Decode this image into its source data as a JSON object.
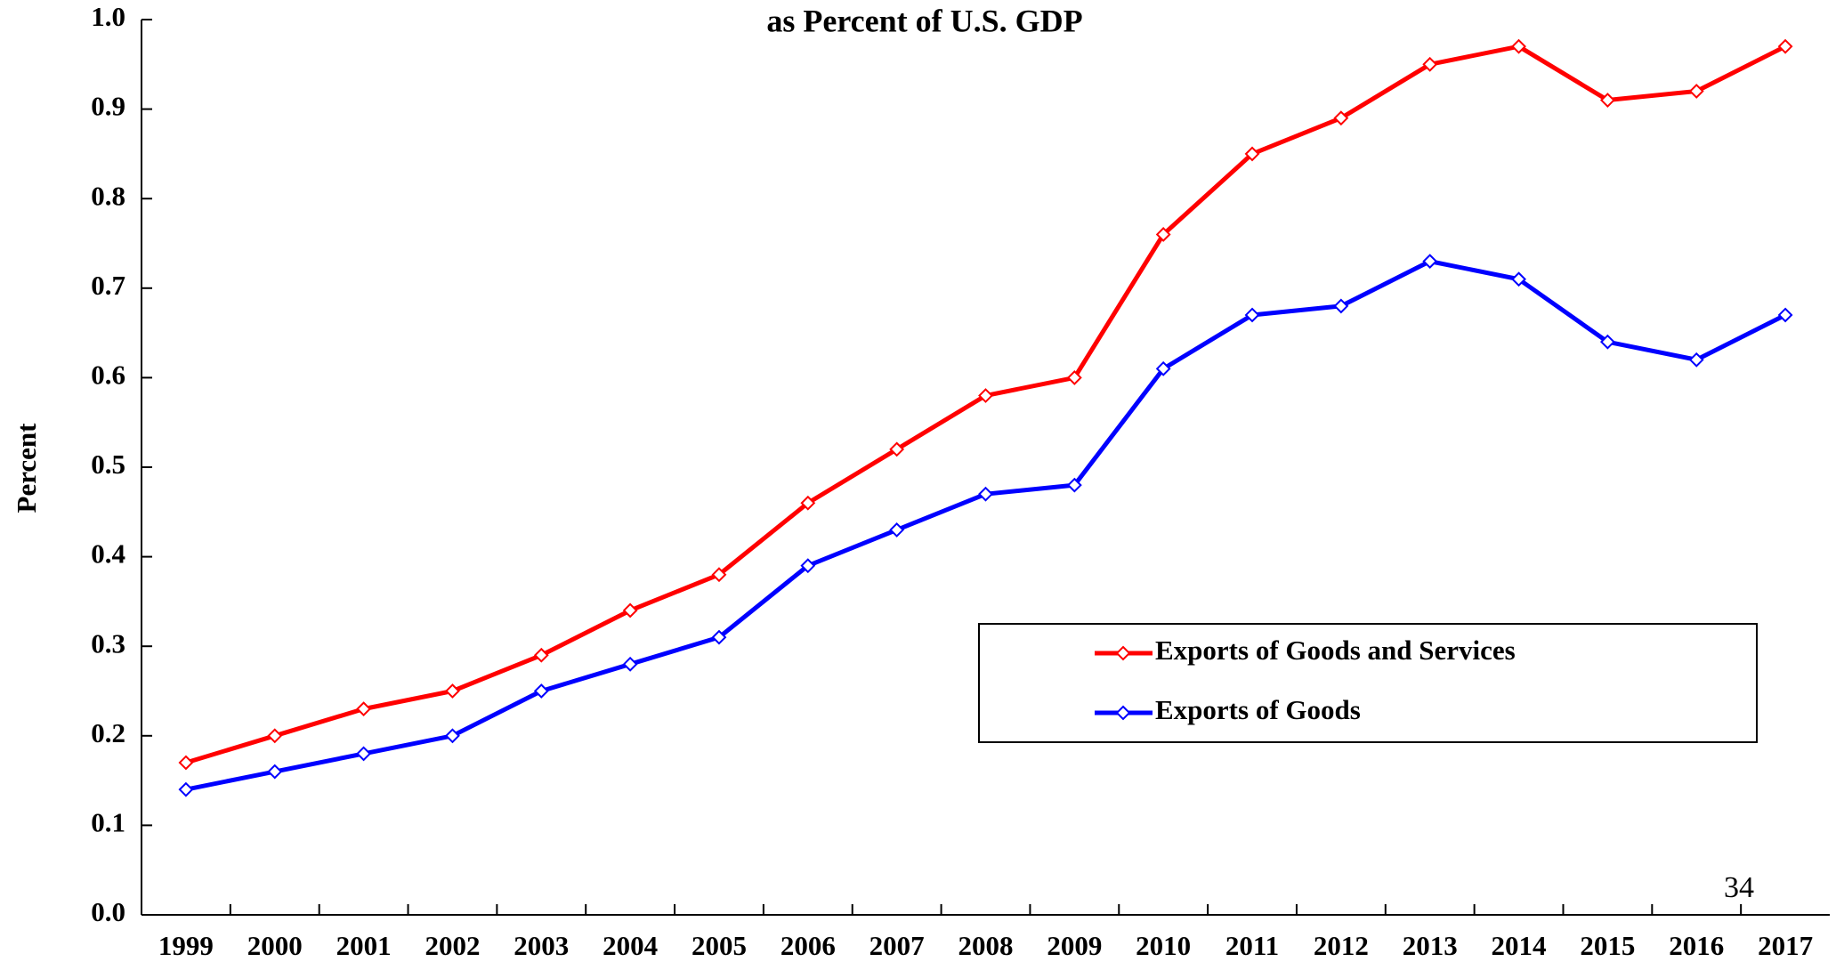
{
  "chart_data": {
    "type": "line",
    "title": "as Percent of U.S. GDP",
    "y_label": "Percent",
    "annotation": "34",
    "categories": [
      "1999",
      "2000",
      "2001",
      "2002",
      "2003",
      "2004",
      "2005",
      "2006",
      "2007",
      "2008",
      "2009",
      "2010",
      "2011",
      "2012",
      "2013",
      "2014",
      "2015",
      "2016",
      "2017"
    ],
    "series": [
      {
        "name": "Exports of Goods and Services",
        "color": "#ff0000",
        "values": [
          0.17,
          0.2,
          0.23,
          0.25,
          0.29,
          0.34,
          0.38,
          0.46,
          0.52,
          0.58,
          0.6,
          0.76,
          0.85,
          0.89,
          0.95,
          0.97,
          0.91,
          0.92,
          0.97
        ]
      },
      {
        "name": "Exports of Goods",
        "color": "#0000ff",
        "values": [
          0.14,
          0.16,
          0.18,
          0.2,
          0.25,
          0.28,
          0.31,
          0.39,
          0.43,
          0.47,
          0.48,
          0.61,
          0.67,
          0.68,
          0.73,
          0.71,
          0.64,
          0.62,
          0.67
        ]
      }
    ],
    "ylim": [
      0,
      1
    ],
    "yticks": [
      {
        "value": 0,
        "label": "0.0"
      },
      0.1,
      0.2,
      0.3,
      0.4,
      0.5,
      0.6,
      0.7,
      0.8,
      0.9,
      {
        "value": 1,
        "label": "1.0"
      }
    ],
    "grid": false,
    "legend": "lower right"
  }
}
